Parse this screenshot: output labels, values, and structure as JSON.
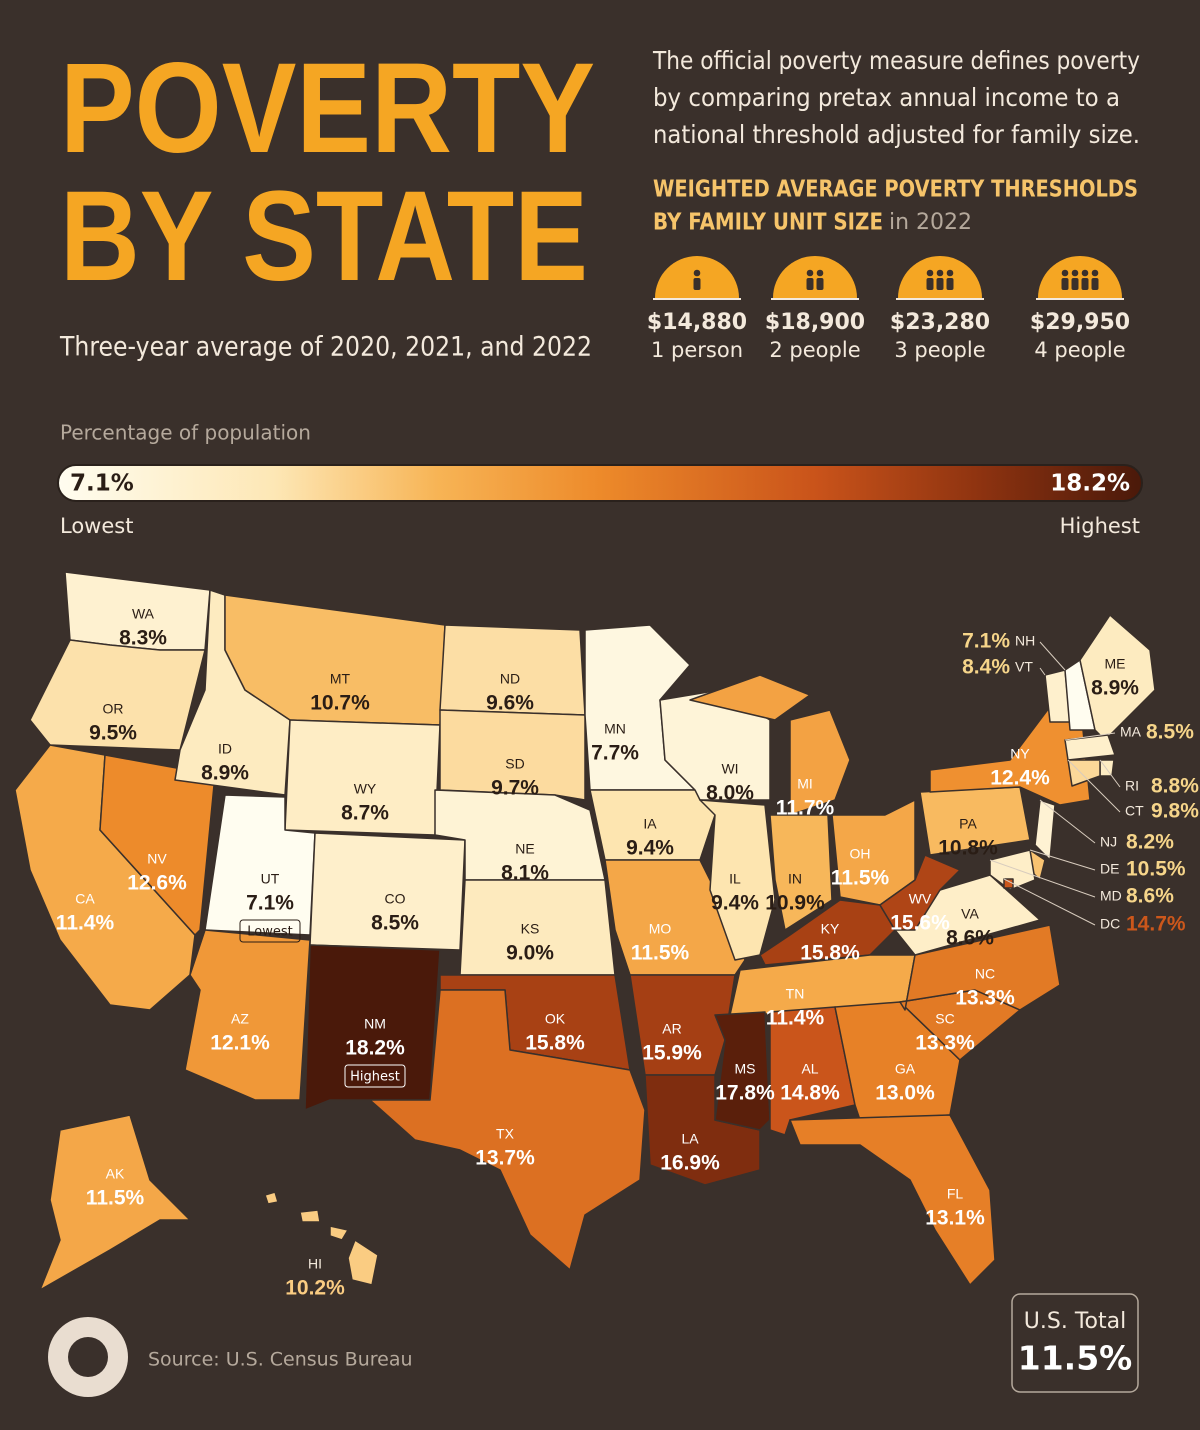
{
  "header": {
    "title_line1": "POVERTY",
    "title_line2": "BY STATE",
    "subtitle": "Three-year average of 2020, 2021, and 2022"
  },
  "intro_lines": [
    "The official poverty measure defines poverty",
    "by comparing pretax annual income to a",
    "national threshold adjusted for family size."
  ],
  "thresholds": {
    "heading_lines": [
      "WEIGHTED AVERAGE POVERTY THRESHOLDS",
      "BY FAMILY UNIT SIZE"
    ],
    "year_note": "in 2022",
    "items": [
      {
        "amount": "$14,880",
        "label": "1 person"
      },
      {
        "amount": "$18,900",
        "label": "2 people"
      },
      {
        "amount": "$23,280",
        "label": "3 people"
      },
      {
        "amount": "$29,950",
        "label": "4 people"
      }
    ]
  },
  "legend": {
    "title": "Percentage of population",
    "min": 7.1,
    "min_label": "7.1%",
    "max": 18.2,
    "max_label": "18.2%",
    "low_text": "Lowest",
    "high_text": "Highest"
  },
  "states": [
    {
      "abbr": "WA",
      "value": 8.3,
      "label": "8.3%"
    },
    {
      "abbr": "OR",
      "value": 9.5,
      "label": "9.5%"
    },
    {
      "abbr": "CA",
      "value": 11.4,
      "label": "11.4%"
    },
    {
      "abbr": "NV",
      "value": 12.6,
      "label": "12.6%"
    },
    {
      "abbr": "ID",
      "value": 8.9,
      "label": "8.9%"
    },
    {
      "abbr": "MT",
      "value": 10.7,
      "label": "10.7%"
    },
    {
      "abbr": "WY",
      "value": 8.7,
      "label": "8.7%"
    },
    {
      "abbr": "UT",
      "value": 7.1,
      "label": "7.1%",
      "badge": "Lowest"
    },
    {
      "abbr": "CO",
      "value": 8.5,
      "label": "8.5%"
    },
    {
      "abbr": "AZ",
      "value": 12.1,
      "label": "12.1%"
    },
    {
      "abbr": "NM",
      "value": 18.2,
      "label": "18.2%",
      "badge": "Highest"
    },
    {
      "abbr": "ND",
      "value": 9.6,
      "label": "9.6%"
    },
    {
      "abbr": "SD",
      "value": 9.7,
      "label": "9.7%"
    },
    {
      "abbr": "NE",
      "value": 8.1,
      "label": "8.1%"
    },
    {
      "abbr": "KS",
      "value": 9.0,
      "label": "9.0%"
    },
    {
      "abbr": "OK",
      "value": 15.8,
      "label": "15.8%"
    },
    {
      "abbr": "TX",
      "value": 13.7,
      "label": "13.7%"
    },
    {
      "abbr": "MN",
      "value": 7.7,
      "label": "7.7%"
    },
    {
      "abbr": "IA",
      "value": 9.4,
      "label": "9.4%"
    },
    {
      "abbr": "MO",
      "value": 11.5,
      "label": "11.5%"
    },
    {
      "abbr": "AR",
      "value": 15.9,
      "label": "15.9%"
    },
    {
      "abbr": "LA",
      "value": 16.9,
      "label": "16.9%"
    },
    {
      "abbr": "WI",
      "value": 8.0,
      "label": "8.0%"
    },
    {
      "abbr": "IL",
      "value": 9.4,
      "label": "9.4%"
    },
    {
      "abbr": "MI",
      "value": 11.7,
      "label": "11.7%"
    },
    {
      "abbr": "IN",
      "value": 10.9,
      "label": "10.9%"
    },
    {
      "abbr": "OH",
      "value": 11.5,
      "label": "11.5%"
    },
    {
      "abbr": "KY",
      "value": 15.8,
      "label": "15.8%"
    },
    {
      "abbr": "TN",
      "value": 11.4,
      "label": "11.4%"
    },
    {
      "abbr": "MS",
      "value": 17.8,
      "label": "17.8%"
    },
    {
      "abbr": "AL",
      "value": 14.8,
      "label": "14.8%"
    },
    {
      "abbr": "GA",
      "value": 13.0,
      "label": "13.0%"
    },
    {
      "abbr": "FL",
      "value": 13.1,
      "label": "13.1%"
    },
    {
      "abbr": "SC",
      "value": 13.3,
      "label": "13.3%"
    },
    {
      "abbr": "NC",
      "value": 13.3,
      "label": "13.3%"
    },
    {
      "abbr": "VA",
      "value": 8.6,
      "label": "8.6%"
    },
    {
      "abbr": "WV",
      "value": 15.6,
      "label": "15.6%"
    },
    {
      "abbr": "PA",
      "value": 10.8,
      "label": "10.8%"
    },
    {
      "abbr": "NY",
      "value": 12.4,
      "label": "12.4%"
    },
    {
      "abbr": "VT",
      "value": 8.4,
      "label": "8.4%"
    },
    {
      "abbr": "NH",
      "value": 7.1,
      "label": "7.1%"
    },
    {
      "abbr": "ME",
      "value": 8.9,
      "label": "8.9%"
    },
    {
      "abbr": "MA",
      "value": 8.5,
      "label": "8.5%"
    },
    {
      "abbr": "RI",
      "value": 8.8,
      "label": "8.8%"
    },
    {
      "abbr": "CT",
      "value": 9.8,
      "label": "9.8%"
    },
    {
      "abbr": "NJ",
      "value": 8.2,
      "label": "8.2%"
    },
    {
      "abbr": "DE",
      "value": 10.5,
      "label": "10.5%"
    },
    {
      "abbr": "MD",
      "value": 8.6,
      "label": "8.6%"
    },
    {
      "abbr": "DC",
      "value": 14.7,
      "label": "14.7%"
    },
    {
      "abbr": "AK",
      "value": 11.5,
      "label": "11.5%"
    },
    {
      "abbr": "HI",
      "value": 10.2,
      "label": "10.2%"
    }
  ],
  "total": {
    "title": "U.S. Total",
    "value": 11.5,
    "label": "11.5%"
  },
  "source": "Source: U.S. Census Bureau"
}
